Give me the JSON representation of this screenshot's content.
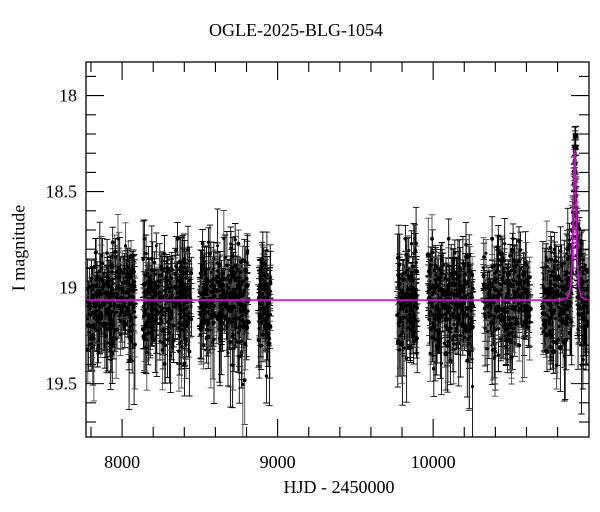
{
  "figure": {
    "title": "OGLE-2025-BLG-1054",
    "xlabel": "HJD - 2450000",
    "ylabel": "I magnitude"
  },
  "chart_data": {
    "type": "scatter",
    "title": "OGLE-2025-BLG-1054",
    "xlabel": "HJD - 2450000",
    "ylabel": "I magnitude",
    "x_axis": {
      "lim": [
        7768,
        11002
      ],
      "major_ticks": [
        8000,
        9000,
        10000
      ],
      "major_tick_labels": [
        "8000",
        "9000",
        "10000"
      ],
      "minor_tick_step": 200
    },
    "y_axis": {
      "inverted": true,
      "lim": [
        17.825,
        19.778
      ],
      "major_ticks": [
        18,
        18.5,
        19,
        19.5
      ],
      "major_tick_labels": [
        "18",
        "18.5",
        "19",
        "19.5"
      ],
      "minor_tick_step": 0.1
    },
    "grid": false,
    "legend": null,
    "point_color": "#000000",
    "baseline_mag": 19.065,
    "model_curve": {
      "type": "paczynski_microlensing",
      "color": "#e100e1",
      "t0": 10910,
      "tE_days": 15,
      "u0": 0.54,
      "baseline_mag": 19.065,
      "peak_mag": 18.28
    },
    "observing_seasons": [
      {
        "name": "season-1",
        "t_range": [
          7775,
          8085
        ],
        "n_points": 260,
        "mag_scatter_sd": 0.125
      },
      {
        "name": "season-2",
        "t_range": [
          8135,
          8450
        ],
        "n_points": 260,
        "mag_scatter_sd": 0.125
      },
      {
        "name": "season-3",
        "t_range": [
          8500,
          8810
        ],
        "n_points": 270,
        "mag_scatter_sd": 0.125
      },
      {
        "name": "season-4",
        "t_range": [
          8875,
          8955
        ],
        "n_points": 80,
        "mag_scatter_sd": 0.12
      },
      {
        "name": "season-5",
        "t_range": [
          9768,
          9900
        ],
        "n_points": 140,
        "mag_scatter_sd": 0.125
      },
      {
        "name": "season-6",
        "t_range": [
          9968,
          10257
        ],
        "n_points": 260,
        "mag_scatter_sd": 0.13
      },
      {
        "name": "season-7",
        "t_range": [
          10322,
          10624
        ],
        "n_points": 240,
        "mag_scatter_sd": 0.125
      },
      {
        "name": "season-8",
        "t_range": [
          10705,
          10995
        ],
        "n_points": 300,
        "mag_scatter_sd": 0.125
      }
    ],
    "brightest_points": [
      {
        "t": 10916,
        "mag": 18.21,
        "err": 0.05
      },
      {
        "t": 10916,
        "mag": 18.27,
        "err": 0.04
      }
    ],
    "typical_error_bar": 0.12
  }
}
